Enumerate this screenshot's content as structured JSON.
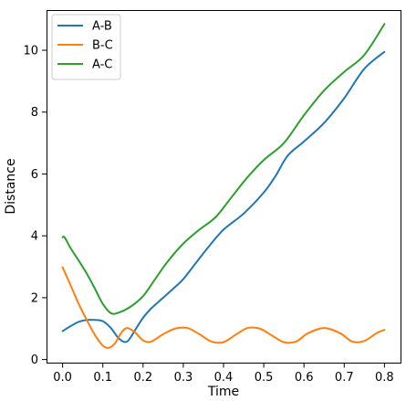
{
  "chart_data": {
    "type": "line",
    "title": "",
    "xlabel": "Time",
    "ylabel": "Distance",
    "xlim": [
      -0.04,
      0.84
    ],
    "ylim": [
      -0.1,
      11.3
    ],
    "xticks": [
      0.0,
      0.1,
      0.2,
      0.3,
      0.4,
      0.5,
      0.6,
      0.7,
      0.8
    ],
    "xtick_labels": [
      "0.0",
      "0.1",
      "0.2",
      "0.3",
      "0.4",
      "0.5",
      "0.6",
      "0.7",
      "0.8"
    ],
    "yticks": [
      0,
      2,
      4,
      6,
      8,
      10
    ],
    "ytick_labels": [
      "0",
      "2",
      "4",
      "6",
      "8",
      "10"
    ],
    "grid": false,
    "legend_position": "top-left",
    "series": [
      {
        "name": "A-B",
        "color": "#1f77b4",
        "x": [
          0.0,
          0.02,
          0.04,
          0.06,
          0.08,
          0.1,
          0.12,
          0.14,
          0.16,
          0.18,
          0.2,
          0.22,
          0.25,
          0.28,
          0.3,
          0.33,
          0.36,
          0.4,
          0.45,
          0.5,
          0.53,
          0.56,
          0.6,
          0.65,
          0.7,
          0.75,
          0.8
        ],
        "y": [
          0.92,
          1.08,
          1.22,
          1.28,
          1.28,
          1.24,
          1.02,
          0.68,
          0.58,
          0.95,
          1.35,
          1.65,
          2.0,
          2.35,
          2.6,
          3.1,
          3.6,
          4.2,
          4.72,
          5.4,
          5.95,
          6.6,
          7.05,
          7.65,
          8.45,
          9.4,
          9.95
        ]
      },
      {
        "name": "B-C",
        "color": "#ff7f0e",
        "x": [
          0.0,
          0.02,
          0.04,
          0.06,
          0.08,
          0.1,
          0.115,
          0.13,
          0.145,
          0.16,
          0.18,
          0.2,
          0.22,
          0.25,
          0.28,
          0.31,
          0.34,
          0.37,
          0.4,
          0.43,
          0.46,
          0.49,
          0.52,
          0.55,
          0.58,
          0.61,
          0.65,
          0.69,
          0.72,
          0.75,
          0.78,
          0.8
        ],
        "y": [
          2.98,
          2.4,
          1.8,
          1.28,
          0.8,
          0.45,
          0.38,
          0.52,
          0.85,
          1.02,
          0.88,
          0.62,
          0.58,
          0.82,
          1.0,
          1.02,
          0.82,
          0.58,
          0.56,
          0.8,
          1.02,
          1.0,
          0.78,
          0.56,
          0.58,
          0.85,
          1.02,
          0.85,
          0.58,
          0.6,
          0.85,
          0.96
        ]
      },
      {
        "name": "A-C",
        "color": "#2ca02c",
        "x": [
          0.0,
          0.005,
          0.02,
          0.04,
          0.06,
          0.08,
          0.1,
          0.12,
          0.14,
          0.17,
          0.2,
          0.23,
          0.26,
          0.3,
          0.34,
          0.38,
          0.42,
          0.46,
          0.5,
          0.55,
          0.6,
          0.65,
          0.7,
          0.75,
          0.8
        ],
        "y": [
          3.95,
          3.95,
          3.6,
          3.2,
          2.78,
          2.3,
          1.8,
          1.5,
          1.52,
          1.72,
          2.05,
          2.6,
          3.15,
          3.75,
          4.2,
          4.6,
          5.25,
          5.9,
          6.45,
          7.0,
          7.9,
          8.7,
          9.3,
          9.85,
          10.85
        ]
      }
    ]
  }
}
